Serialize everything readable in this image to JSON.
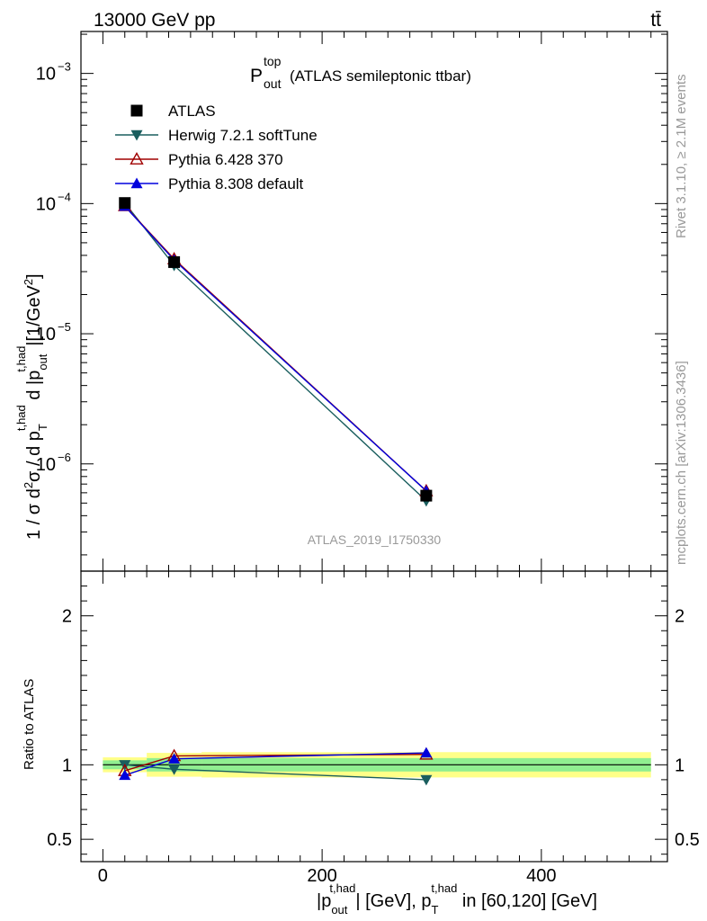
{
  "header": {
    "energy_label": "13000 GeV pp",
    "process_label": "tt̄"
  },
  "plot_title": {
    "symbol": "P",
    "superscript": "top",
    "subscript": "out",
    "text": "(ATLAS semileptonic ttbar)"
  },
  "side_labels": {
    "rivet": "Rivet 3.1.10, ≥ 2.1M events",
    "mcplots": "mcplots.cern.ch [arXiv:1306.3436]"
  },
  "watermark": "ATLAS_2019_I1750330",
  "colors": {
    "atlas": "#000000",
    "herwig": "#1a5e5e",
    "pythia6": "#a00000",
    "pythia8": "#0000dd",
    "band_inner": "#90ee90",
    "band_outer": "#ffff88"
  },
  "chart_data": [
    {
      "type": "line",
      "panel": "main",
      "xlabel": "|p_out^t,had| [GeV], p_T^t,had in [60,120] [GeV]",
      "ylabel": "1 / σ d²σ / d p_T^t,had d |p_out^t,had|[1/GeV²]",
      "yscale": "log",
      "xlim": [
        -20,
        515
      ],
      "ylim": [
        1.5e-07,
        0.0021
      ],
      "y_tick_labels": [
        "10^-6",
        "10^-5",
        "10^-4",
        "10^-3"
      ],
      "legend_position": "top-left",
      "series": [
        {
          "name": "ATLAS",
          "marker": "square",
          "x": [
            20,
            65,
            295
          ],
          "y": [
            0.000101,
            3.55e-05,
            5.7e-07
          ]
        },
        {
          "name": "Herwig 7.2.1 softTune",
          "marker": "triangle-down",
          "x": [
            20,
            65,
            295
          ],
          "y": [
            0.000101,
            3.35e-05,
            5.2e-07
          ]
        },
        {
          "name": "Pythia 6.428 370",
          "marker": "triangle-up-open",
          "x": [
            20,
            65,
            295
          ],
          "y": [
            9.6e-05,
            3.75e-05,
            6.2e-07
          ]
        },
        {
          "name": "Pythia 8.308 default",
          "marker": "triangle-up",
          "x": [
            20,
            65,
            295
          ],
          "y": [
            9.55e-05,
            3.68e-05,
            6.2e-07
          ]
        }
      ]
    },
    {
      "type": "line",
      "panel": "ratio",
      "ylabel": "Ratio to ATLAS",
      "xlim": [
        -20,
        515
      ],
      "ylim": [
        0.35,
        2.3
      ],
      "x_ticks": [
        0,
        200,
        400
      ],
      "y_ticks": [
        0.5,
        1,
        2
      ],
      "bands": [
        {
          "x0": 0,
          "x1": 40,
          "inner": [
            0.97,
            1.03
          ],
          "outer": [
            0.95,
            1.05
          ]
        },
        {
          "x0": 40,
          "x1": 90,
          "inner": [
            0.955,
            1.045
          ],
          "outer": [
            0.92,
            1.08
          ]
        },
        {
          "x0": 90,
          "x1": 500,
          "inner": [
            0.955,
            1.045
          ],
          "outer": [
            0.915,
            1.085
          ]
        }
      ],
      "series": [
        {
          "name": "Herwig 7.2.1 softTune",
          "x": [
            20,
            65,
            295
          ],
          "y": [
            1.0,
            0.97,
            0.9
          ]
        },
        {
          "name": "Pythia 6.428 370",
          "x": [
            20,
            65,
            295
          ],
          "y": [
            0.96,
            1.06,
            1.07
          ]
        },
        {
          "name": "Pythia 8.308 default",
          "x": [
            20,
            65,
            295
          ],
          "y": [
            0.93,
            1.04,
            1.08
          ]
        }
      ]
    }
  ]
}
